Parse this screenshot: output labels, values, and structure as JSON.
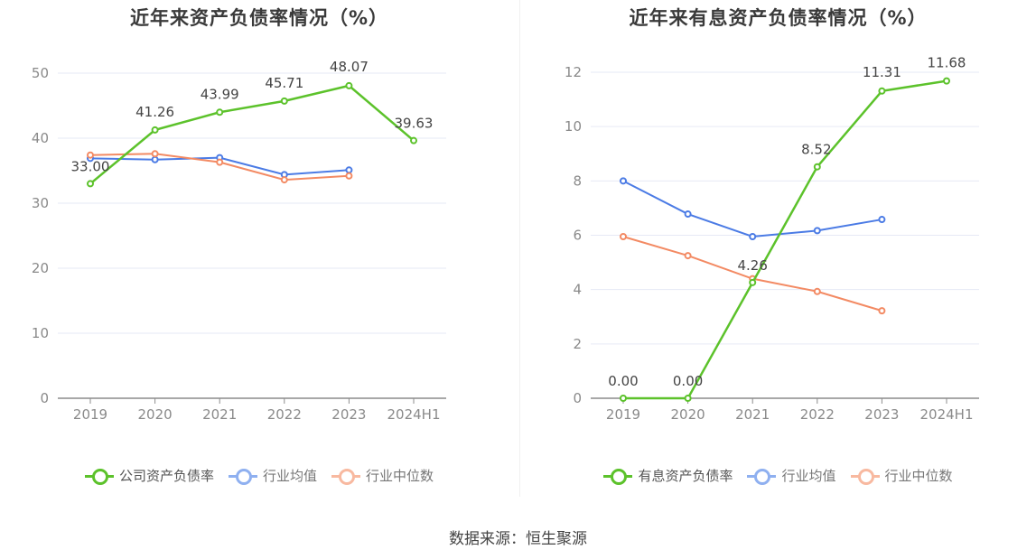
{
  "colors": {
    "main_series": "#5cc22b",
    "industry_avg": "#4b7be5",
    "industry_median": "#f38a63",
    "grid": "#e6e9f5",
    "axis": "#8c8c8c"
  },
  "source_text": "数据来源：恒生聚源",
  "chart_data": [
    {
      "type": "line",
      "title": "近年来资产负债率情况（%）",
      "categories": [
        "2019",
        "2020",
        "2021",
        "2022",
        "2023",
        "2024H1"
      ],
      "ylim": [
        0,
        50
      ],
      "yticks": [
        0,
        10,
        20,
        30,
        40,
        50
      ],
      "grid": true,
      "legend_placement": "bottom",
      "series": [
        {
          "name": "公司资产负债率",
          "values": [
            33.0,
            41.26,
            43.99,
            45.71,
            48.07,
            39.63
          ],
          "labels": [
            "33.00",
            "41.26",
            "43.99",
            "45.71",
            "48.07",
            "39.63"
          ]
        },
        {
          "name": "行业均值",
          "values": [
            36.9,
            36.7,
            37.0,
            34.4,
            35.1,
            null
          ]
        },
        {
          "name": "行业中位数",
          "values": [
            37.4,
            37.6,
            36.3,
            33.6,
            34.2,
            null
          ]
        }
      ]
    },
    {
      "type": "line",
      "title": "近年来有息资产负债率情况（%）",
      "categories": [
        "2019",
        "2020",
        "2021",
        "2022",
        "2023",
        "2024H1"
      ],
      "ylim": [
        0,
        12
      ],
      "yticks": [
        0,
        2,
        4,
        6,
        8,
        10,
        12
      ],
      "grid": true,
      "legend_placement": "bottom",
      "series": [
        {
          "name": "有息资产负债率",
          "values": [
            0.0,
            0.0,
            4.26,
            8.52,
            11.31,
            11.68
          ],
          "labels": [
            "0.00",
            "0.00",
            "4.26",
            "8.52",
            "11.31",
            "11.68"
          ]
        },
        {
          "name": "行业均值",
          "values": [
            8.0,
            6.78,
            5.95,
            6.17,
            6.58,
            null
          ]
        },
        {
          "name": "行业中位数",
          "values": [
            5.95,
            5.25,
            4.4,
            3.93,
            3.22,
            null
          ]
        }
      ]
    }
  ]
}
